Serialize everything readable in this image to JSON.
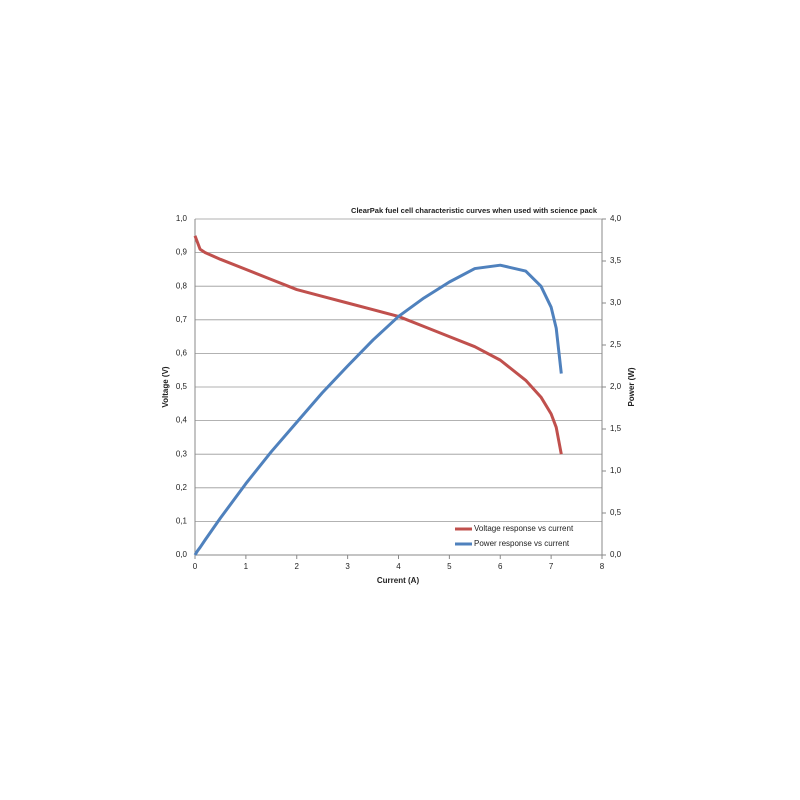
{
  "chart_data": {
    "type": "line",
    "title": "ClearPak fuel cell characteristic curves when used with science pack",
    "x_label": "Current  (A)",
    "y_label": "Voltage (V)",
    "y2_label": "Power (W)",
    "x": [
      0,
      0.05,
      0.1,
      0.2,
      0.5,
      1,
      1.5,
      2,
      2.5,
      3,
      3.5,
      4,
      4.5,
      5,
      5.5,
      6,
      6.5,
      6.8,
      7.0,
      7.1,
      7.15,
      7.2
    ],
    "series": [
      {
        "name": "Voltage response vs current",
        "color": "#c0504d",
        "values": [
          0.95,
          0.93,
          0.91,
          0.9,
          0.88,
          0.85,
          0.82,
          0.79,
          0.77,
          0.75,
          0.73,
          0.71,
          0.68,
          0.65,
          0.62,
          0.58,
          0.52,
          0.47,
          0.42,
          0.38,
          0.34,
          0.3
        ]
      },
      {
        "name": "Power response vs current",
        "color": "#4f81bd",
        "axis": "y2",
        "values": [
          0,
          0.05,
          0.09,
          0.18,
          0.44,
          0.85,
          1.23,
          1.58,
          1.93,
          2.25,
          2.56,
          2.84,
          3.06,
          3.25,
          3.41,
          3.45,
          3.38,
          3.2,
          2.95,
          2.7,
          2.43,
          2.16
        ]
      }
    ],
    "xlim": [
      0,
      8
    ],
    "xticks": [
      0,
      1,
      2,
      3,
      4,
      5,
      6,
      7,
      8
    ],
    "ylim": [
      0,
      1
    ],
    "yticks": [
      {
        "value": 0,
        "label": "0,0"
      },
      {
        "value": 0.1,
        "label": "0,1"
      },
      {
        "value": 0.2,
        "label": "0,2"
      },
      {
        "value": 0.3,
        "label": "0,3"
      },
      {
        "value": 0.4,
        "label": "0,4"
      },
      {
        "value": 0.5,
        "label": "0,5"
      },
      {
        "value": 0.6,
        "label": "0,6"
      },
      {
        "value": 0.7,
        "label": "0,7"
      },
      {
        "value": 0.8,
        "label": "0,8"
      },
      {
        "value": 0.9,
        "label": "0,9"
      },
      {
        "value": 1,
        "label": "1,0"
      }
    ],
    "y2lim": [
      0,
      4
    ],
    "y2ticks": [
      {
        "value": 0,
        "label": "0,0"
      },
      {
        "value": 0.5,
        "label": "0,5"
      },
      {
        "value": 1,
        "label": "1,0"
      },
      {
        "value": 1.5,
        "label": "1,5"
      },
      {
        "value": 2,
        "label": "2,0"
      },
      {
        "value": 2.5,
        "label": "2,5"
      },
      {
        "value": 3,
        "label": "3,0"
      },
      {
        "value": 3.5,
        "label": "3,5"
      },
      {
        "value": 4,
        "label": "4,0"
      }
    ],
    "grid": true
  }
}
